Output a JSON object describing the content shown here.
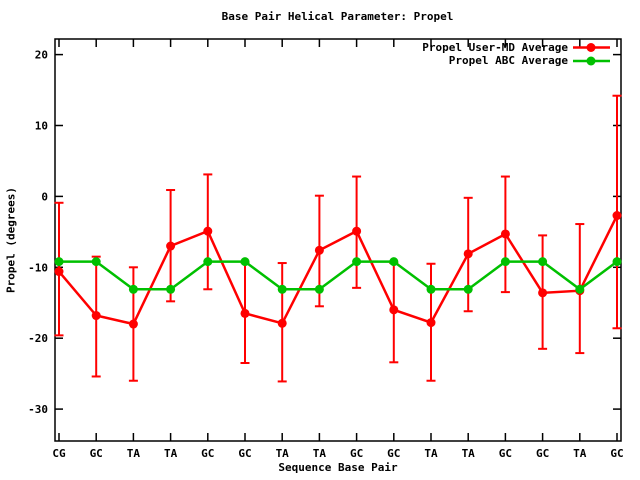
{
  "chart_data": {
    "type": "line",
    "title": "Base Pair Helical Parameter: Propel",
    "xlabel": "Sequence Base Pair",
    "ylabel": "Propel (degrees)",
    "categories": [
      "CG",
      "GC",
      "TA",
      "TA",
      "GC",
      "GC",
      "TA",
      "TA",
      "GC",
      "GC",
      "TA",
      "TA",
      "GC",
      "GC",
      "TA",
      "GC"
    ],
    "yticks": [
      20,
      10,
      0,
      -10,
      -20,
      -30
    ],
    "ylim": [
      -34.5,
      22.2
    ],
    "grid": false,
    "legend_position": "top-right-inside",
    "series": [
      {
        "name": "Propel User-MD Average",
        "color": "#ff0000",
        "marker": "filled-circle",
        "values": [
          -10.6,
          -16.8,
          -18.0,
          -7.0,
          -4.9,
          -16.5,
          -17.9,
          -7.6,
          -4.9,
          -16.0,
          -17.8,
          -8.1,
          -5.3,
          -13.6,
          -13.3,
          -2.7
        ],
        "error_low": [
          -19.6,
          -25.4,
          -26.0,
          -14.8,
          -13.1,
          -23.5,
          -26.1,
          -15.5,
          -12.9,
          -23.4,
          -26.0,
          -16.2,
          -13.5,
          -21.5,
          -22.1,
          -18.6
        ],
        "error_high": [
          -0.9,
          -8.5,
          -10.0,
          0.9,
          3.1,
          -9.3,
          -9.4,
          0.1,
          2.8,
          -9.4,
          -9.5,
          -0.2,
          2.8,
          -5.5,
          -3.9,
          14.2
        ]
      },
      {
        "name": "Propel ABC Average",
        "color": "#00c000",
        "marker": "filled-circle",
        "values": [
          -9.2,
          -9.2,
          -13.1,
          -13.1,
          -9.2,
          -9.2,
          -13.1,
          -13.1,
          -9.2,
          -9.2,
          -13.1,
          -13.1,
          -9.2,
          -9.2,
          -13.1,
          -9.2
        ]
      }
    ]
  }
}
